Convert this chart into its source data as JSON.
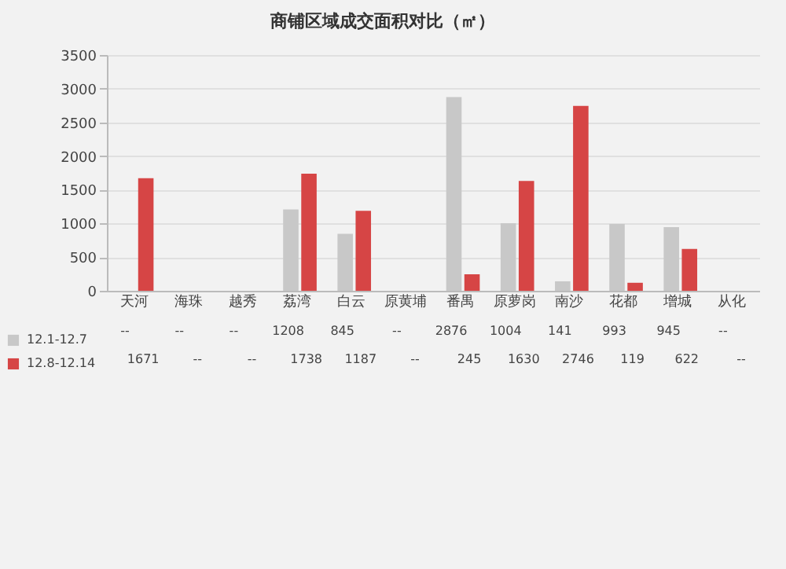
{
  "chart_data": {
    "type": "bar",
    "title": "商铺区域成交面积对比（㎡）",
    "categories": [
      "天河",
      "海珠",
      "越秀",
      "荔湾",
      "白云",
      "原黄埔",
      "番禺",
      "原萝岗",
      "南沙",
      "花都",
      "增城",
      "从化"
    ],
    "series": [
      {
        "name": "12.1-12.7",
        "color": "#c8c8c8",
        "values": [
          null,
          null,
          null,
          1208,
          845,
          null,
          2876,
          1004,
          141,
          993,
          945,
          null
        ],
        "value_labels": [
          "--",
          "--",
          "--",
          "1208",
          "845",
          "--",
          "2876",
          "1004",
          "141",
          "993",
          "945",
          "--"
        ]
      },
      {
        "name": "12.8-12.14",
        "color": "#d64545",
        "values": [
          1671,
          null,
          null,
          1738,
          1187,
          null,
          245,
          1630,
          2746,
          119,
          622,
          null
        ],
        "value_labels": [
          "1671",
          "--",
          "--",
          "1738",
          "1187",
          "--",
          "245",
          "1630",
          "2746",
          "119",
          "622",
          "--"
        ]
      }
    ],
    "ylim": [
      0,
      3500
    ],
    "yticks": [
      0,
      500,
      1000,
      1500,
      2000,
      2500,
      3000,
      3500
    ],
    "grid": "y",
    "legend": "bottom left"
  }
}
